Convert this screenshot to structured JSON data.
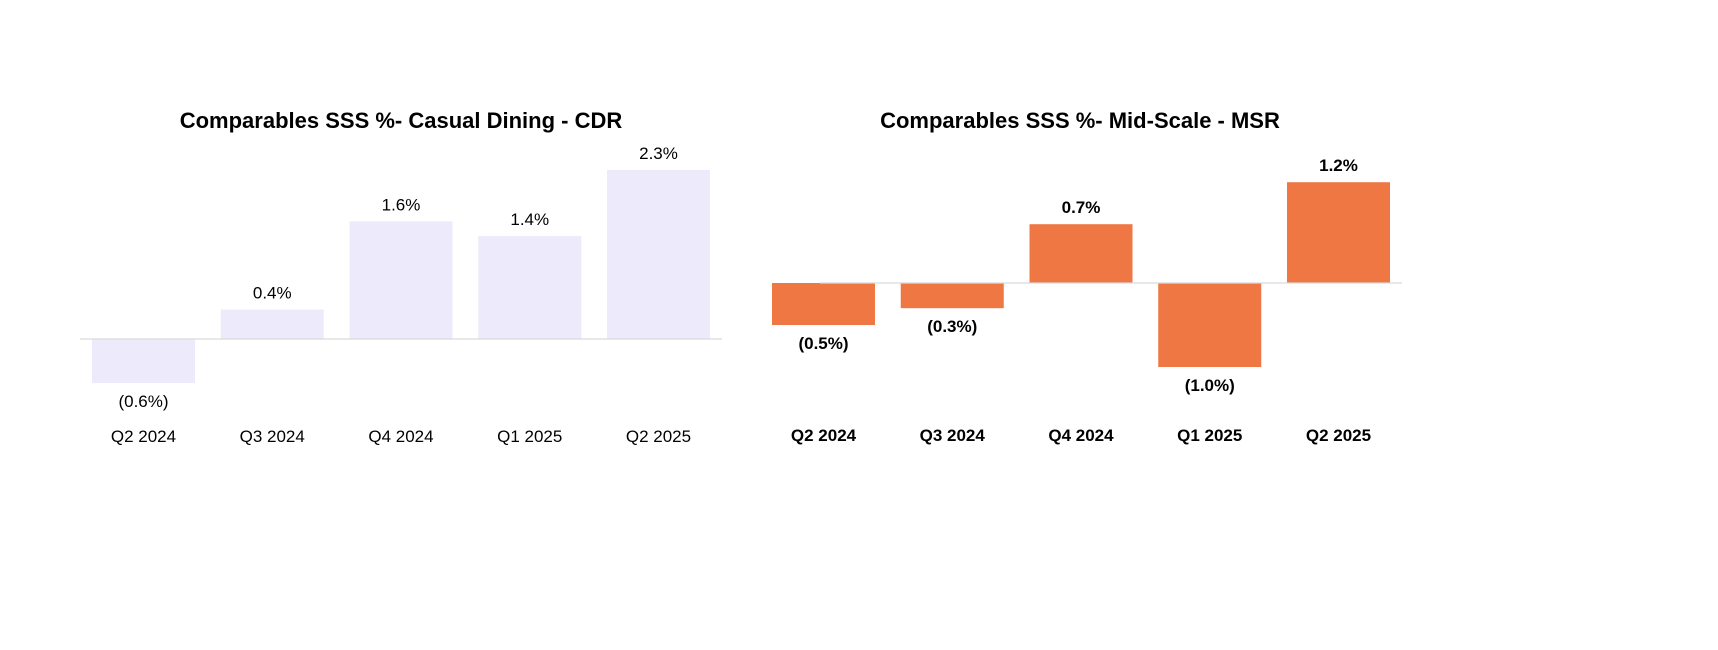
{
  "chart_data": [
    {
      "type": "bar",
      "title": "Comparables SSS %- Casual Dining - CDR",
      "categories": [
        "Q2 2024",
        "Q3 2024",
        "Q4 2024",
        "Q1 2025",
        "Q2 2025"
      ],
      "values": [
        -0.6,
        0.4,
        1.6,
        1.4,
        2.3
      ],
      "data_labels": [
        "(0.6%)",
        "0.4%",
        "1.6%",
        "1.4%",
        "2.3%"
      ],
      "unit": "%",
      "color": "#ECEAFB",
      "bold_labels": false,
      "grid": false,
      "legend": "none"
    },
    {
      "type": "bar",
      "title": "Comparables SSS %- Mid-Scale - MSR",
      "categories": [
        "Q2 2024",
        "Q3 2024",
        "Q4 2024",
        "Q1 2025",
        "Q2 2025"
      ],
      "values": [
        -0.5,
        -0.3,
        0.7,
        -1.0,
        1.2
      ],
      "data_labels": [
        "(0.5%)",
        "(0.3%)",
        "0.7%",
        "(1.0%)",
        "1.2%"
      ],
      "unit": "%",
      "color": "#EE7744",
      "bold_labels": true,
      "grid": false,
      "legend": "none"
    }
  ]
}
